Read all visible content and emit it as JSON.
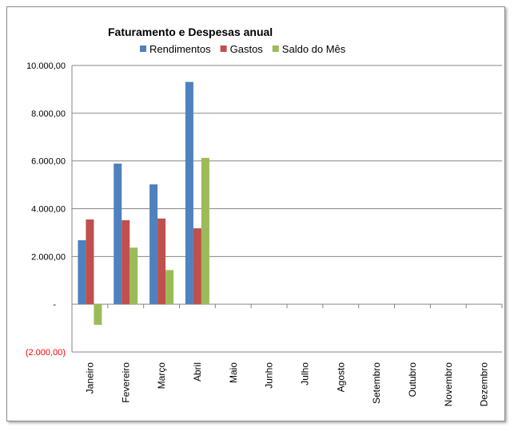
{
  "chart_data": {
    "type": "bar",
    "title": "Faturamento e Despesas anual",
    "categories": [
      "Janeiro",
      "Fevereiro",
      "Março",
      "Abril",
      "Maio",
      "Junho",
      "Julho",
      "Agosto",
      "Setembro",
      "Outubro",
      "Novembro",
      "Dezembro"
    ],
    "series": [
      {
        "name": "Rendimentos",
        "color": "#4f81bd",
        "values": [
          2680,
          5890,
          5020,
          9310,
          null,
          null,
          null,
          null,
          null,
          null,
          null,
          null
        ]
      },
      {
        "name": "Gastos",
        "color": "#c0504d",
        "values": [
          3550,
          3520,
          3590,
          3180,
          null,
          null,
          null,
          null,
          null,
          null,
          null,
          null
        ]
      },
      {
        "name": "Saldo do Mês",
        "color": "#9bbb59",
        "values": [
          -860,
          2370,
          1430,
          6130,
          null,
          null,
          null,
          null,
          null,
          null,
          null,
          null
        ]
      }
    ],
    "ylim": [
      -2000,
      10000
    ],
    "yticks": [
      10000,
      8000,
      6000,
      4000,
      2000,
      0,
      -2000
    ],
    "ytick_labels": [
      "10.000,00",
      "8.000,00",
      "6.000,00",
      "4.000,00",
      "2.000,00",
      "-",
      "(2.000,00)"
    ],
    "negative_label_color": "#ff0000",
    "legend": "top",
    "grid": true
  }
}
